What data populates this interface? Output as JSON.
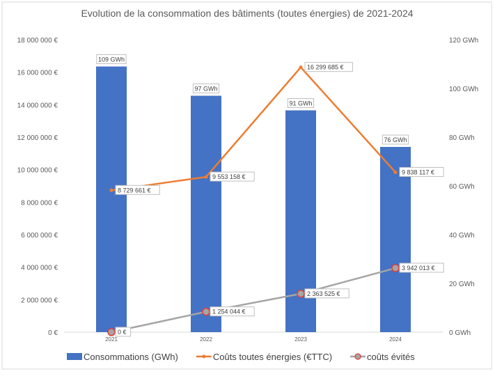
{
  "chart_data": {
    "type": "bar+line",
    "title": "Evolution de la consommation des bâtiments (toutes énergies) de 2021-2024",
    "categories": [
      "2021",
      "2022",
      "2023",
      "2024"
    ],
    "y_left": {
      "range": [
        0,
        18000000
      ],
      "ticks": [
        "0 €",
        "2 000 000 €",
        "4 000 000 €",
        "6 000 000 €",
        "8 000 000 €",
        "10 000 000 €",
        "12 000 000 €",
        "14 000 000 €",
        "16 000 000 €",
        "18 000 000 €"
      ]
    },
    "y_right": {
      "range": [
        0,
        120
      ],
      "ticks": [
        "0 GWh",
        "20 GWh",
        "40 GWh",
        "60 GWh",
        "80 GWh",
        "100 GWh",
        "120 GWh"
      ]
    },
    "grid": false,
    "legend_position": "bottom",
    "series": [
      {
        "name": "Consommations (GWh)",
        "type": "bar",
        "axis": "right",
        "color": "#4472C4",
        "values": [
          109,
          97,
          91,
          76
        ],
        "labels": [
          "109 GWh",
          "97 GWh",
          "91 GWh",
          "76 GWh"
        ]
      },
      {
        "name": "Coûts toutes énergies (€TTC)",
        "type": "line",
        "axis": "left",
        "color": "#ED7D31",
        "values": [
          8729661,
          9553158,
          16299685,
          9838117
        ],
        "labels": [
          "8 729 661 €",
          "9 553 158 €",
          "16 299 685 €",
          "9 838 117 €"
        ]
      },
      {
        "name": "coûts évités",
        "type": "line",
        "axis": "left",
        "color": "#A5A5A5",
        "marker_edge": "#E0403A",
        "values": [
          0,
          1254044,
          2363525,
          3942013
        ],
        "labels": [
          "0 €",
          "1 254 044 €",
          "2 363 525 €",
          "3 942 013 €"
        ]
      }
    ]
  }
}
